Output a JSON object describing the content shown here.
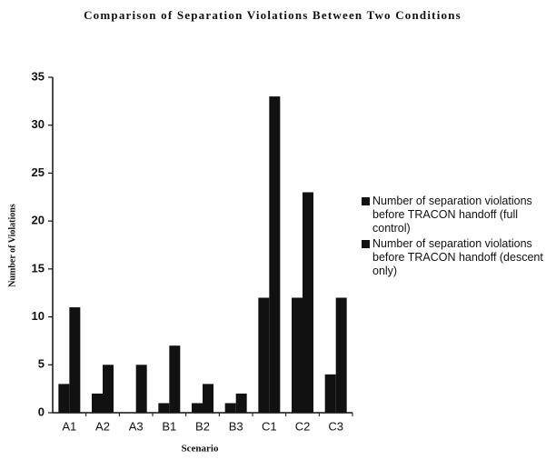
{
  "chart_data": {
    "type": "bar",
    "title": "Comparison of Separation Violations Between Two Conditions",
    "x_label": "Scenario",
    "y_label": "Number of Violations",
    "categories": [
      "A1",
      "A2",
      "A3",
      "B1",
      "B2",
      "B3",
      "C1",
      "C2",
      "C3"
    ],
    "series": [
      {
        "name": "Number of separation violations before TRACON handoff (full control)",
        "color": "#111111",
        "values": [
          3,
          2,
          0,
          1,
          1,
          1,
          12,
          12,
          4
        ]
      },
      {
        "name": "Number of separation violations before TRACON handoff (descent only)",
        "color": "#111111",
        "values": [
          11,
          5,
          5,
          7,
          3,
          2,
          33,
          23,
          12
        ]
      }
    ],
    "ylim": [
      0,
      35
    ],
    "yticks": [
      0,
      5,
      10,
      15,
      20,
      25,
      30,
      35
    ],
    "grid": false,
    "legend": "right"
  }
}
